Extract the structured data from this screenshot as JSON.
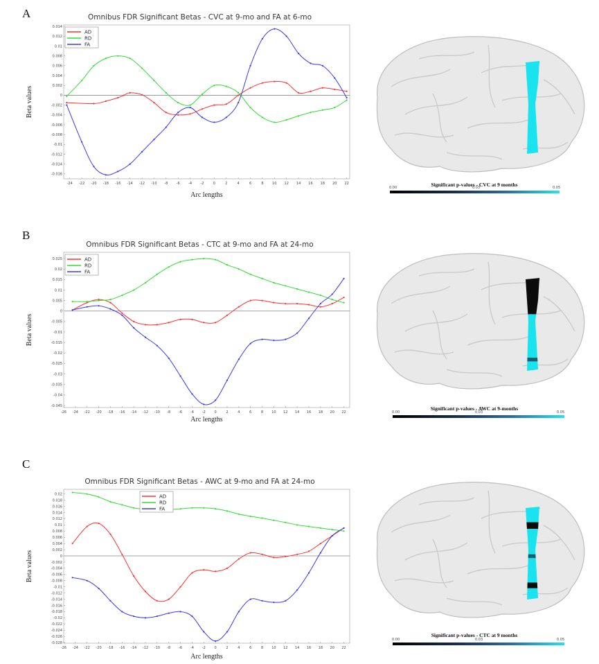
{
  "panels": [
    {
      "letter": "A",
      "colorbar_title": "Significant p-values - CVC at 9 months",
      "colorbar_ticks": [
        "0.00",
        "0.03",
        "0.05"
      ],
      "brain_marks": [
        {
          "from": 0.0,
          "to": 1.0,
          "color": "#19e3ee"
        }
      ]
    },
    {
      "letter": "B",
      "colorbar_title": "Significant p-values - AWC at 9-months",
      "colorbar_ticks": [
        "0.00",
        "0.03",
        "0.05"
      ],
      "brain_marks": [
        {
          "from": 0.0,
          "to": 0.4,
          "color": "#0b0b0b"
        },
        {
          "from": 0.4,
          "to": 1.0,
          "color": "#19e3ee"
        },
        {
          "from": 0.86,
          "to": 0.9,
          "color": "#155f73"
        }
      ]
    },
    {
      "letter": "C",
      "colorbar_title": "Significant p-values - CTC at 9 months",
      "colorbar_ticks": [
        "0.00",
        "0.03",
        "0.05"
      ],
      "brain_marks": [
        {
          "from": 0.0,
          "to": 1.0,
          "color": "#19e3ee"
        },
        {
          "from": 0.18,
          "to": 0.25,
          "color": "#0b0b0b"
        },
        {
          "from": 0.52,
          "to": 0.56,
          "color": "#155f73"
        },
        {
          "from": 0.82,
          "to": 0.88,
          "color": "#0b0b0b"
        }
      ]
    }
  ],
  "chart_data": [
    {
      "type": "line",
      "title": "Omnibus FDR Significant Betas - CVC at 9-mo and FA at 6-mo",
      "xlabel": "Arc lengths",
      "ylabel": "Beta values",
      "xlim": [
        -25,
        22.5
      ],
      "ylim": [
        -0.017,
        0.0143
      ],
      "xticks": [
        -24,
        -22,
        -20,
        -18,
        -16,
        -14,
        -12,
        -10,
        -8,
        -6,
        -4,
        -2,
        0,
        2,
        4,
        6,
        8,
        10,
        12,
        14,
        16,
        18,
        20,
        22
      ],
      "yticks": [
        {
          "v": 0.014,
          "label": "0.014"
        },
        {
          "v": 0.012,
          "label": "0.012"
        },
        {
          "v": 0.01,
          "label": "0.01"
        },
        {
          "v": 0.008,
          "label": "0.008"
        },
        {
          "v": 0.006,
          "label": "0.006"
        },
        {
          "v": 0.004,
          "label": "0.004"
        },
        {
          "v": 0.002,
          "label": "0.002"
        },
        {
          "v": 0,
          "label": "0"
        },
        {
          "v": -0.002,
          "label": "-0.002"
        },
        {
          "v": -0.004,
          "label": "-0.004"
        },
        {
          "v": -0.006,
          "label": "-0.006"
        },
        {
          "v": -0.008,
          "label": "-0.008"
        },
        {
          "v": -0.01,
          "label": "-0.01"
        },
        {
          "v": -0.012,
          "label": "-0.012"
        },
        {
          "v": -0.014,
          "label": "-0.014"
        },
        {
          "v": -0.016,
          "label": "-0.016"
        }
      ],
      "legend": "top-left",
      "series": [
        {
          "name": "AD",
          "color": "#ff3030",
          "x": [
            -24.5,
            -20,
            -18,
            -16,
            -15,
            -14,
            -12,
            -10,
            -8,
            -6,
            -4,
            -2,
            0,
            2,
            4,
            6,
            8,
            10,
            12,
            14,
            16,
            18,
            20,
            22
          ],
          "y": [
            -0.0015,
            -0.0017,
            -0.0012,
            -0.0005,
            0.0,
            0.0005,
            0.0001,
            -0.0015,
            -0.0035,
            -0.004,
            -0.0038,
            -0.0028,
            -0.002,
            -0.0018,
            0.0,
            0.0015,
            0.0025,
            0.0028,
            0.0025,
            0.0005,
            0.0008,
            0.0015,
            0.0012,
            0.0008
          ]
        },
        {
          "name": "RD",
          "color": "#33dd33",
          "x": [
            -24.5,
            -22,
            -20,
            -18,
            -16,
            -14,
            -12,
            -10,
            -8,
            -6,
            -4,
            -2,
            0,
            2,
            4,
            6,
            8,
            10,
            12,
            14,
            16,
            18,
            20,
            22
          ],
          "y": [
            -0.0002,
            0.003,
            0.006,
            0.0075,
            0.008,
            0.0075,
            0.0055,
            0.003,
            0.0005,
            -0.0015,
            -0.002,
            0.0002,
            0.002,
            0.0018,
            0.0005,
            -0.0025,
            -0.0045,
            -0.0055,
            -0.005,
            -0.0042,
            -0.0035,
            -0.003,
            -0.0025,
            -0.001
          ]
        },
        {
          "name": "FA",
          "color": "#3838ee",
          "x": [
            -24.5,
            -22,
            -20,
            -18,
            -16,
            -14,
            -12,
            -10,
            -8,
            -6,
            -4,
            -2,
            0,
            2,
            4,
            6,
            8,
            10,
            12,
            14,
            16,
            18,
            20,
            22
          ],
          "y": [
            -0.002,
            -0.0095,
            -0.0145,
            -0.0162,
            -0.0155,
            -0.014,
            -0.0115,
            -0.009,
            -0.0065,
            -0.0035,
            -0.0025,
            -0.0045,
            -0.0055,
            -0.0045,
            -0.0015,
            0.006,
            0.0115,
            0.0135,
            0.012,
            0.0085,
            0.0065,
            0.006,
            0.0035,
            -0.0005
          ]
        }
      ]
    },
    {
      "type": "line",
      "title": "Omnibus FDR Significant Betas - CTC at 9-mo and FA at 24-mo",
      "xlabel": "Arc lengths",
      "ylabel": "Beta values",
      "xlim": [
        -26,
        23
      ],
      "ylim": [
        -0.046,
        0.028
      ],
      "xticks": [
        -26,
        -24,
        -22,
        -20,
        -18,
        -16,
        -14,
        -12,
        -10,
        -8,
        -6,
        -4,
        -2,
        0,
        2,
        4,
        6,
        8,
        10,
        12,
        14,
        16,
        18,
        20,
        22
      ],
      "yticks": [
        {
          "v": 0.025,
          "label": "0.025"
        },
        {
          "v": 0.02,
          "label": "0.02"
        },
        {
          "v": 0.015,
          "label": "0.015"
        },
        {
          "v": 0.01,
          "label": "0.01"
        },
        {
          "v": 0.005,
          "label": "0.005"
        },
        {
          "v": 0,
          "label": "0"
        },
        {
          "v": -0.005,
          "label": "-0.005"
        },
        {
          "v": -0.01,
          "label": "-0.01"
        },
        {
          "v": -0.015,
          "label": "-0.015"
        },
        {
          "v": -0.02,
          "label": "-0.02"
        },
        {
          "v": -0.025,
          "label": "-0.025"
        },
        {
          "v": -0.03,
          "label": "-0.03"
        },
        {
          "v": -0.035,
          "label": "-0.035"
        },
        {
          "v": -0.04,
          "label": "-0.04"
        },
        {
          "v": -0.045,
          "label": "-0.045"
        }
      ],
      "legend": "top-left",
      "series": [
        {
          "name": "AD",
          "color": "#ff3030",
          "x": [
            -24.5,
            -22,
            -20,
            -18,
            -16,
            -14,
            -12,
            -10,
            -8,
            -6,
            -4,
            -2,
            0,
            2,
            4,
            6,
            8,
            10,
            12,
            14,
            16,
            18,
            20,
            22
          ],
          "y": [
            0.0005,
            0.004,
            0.0055,
            0.004,
            -0.001,
            -0.005,
            -0.0065,
            -0.0065,
            -0.0055,
            -0.004,
            -0.004,
            -0.0055,
            -0.0055,
            -0.002,
            0.002,
            0.005,
            0.005,
            0.004,
            0.0035,
            0.0035,
            0.003,
            0.002,
            0.0035,
            0.0065
          ]
        },
        {
          "name": "RD",
          "color": "#33dd33",
          "x": [
            -24.5,
            -22,
            -20,
            -18,
            -16,
            -14,
            -12,
            -10,
            -8,
            -6,
            -4,
            -2,
            0,
            2,
            4,
            6,
            8,
            10,
            12,
            14,
            16,
            18,
            20,
            22
          ],
          "y": [
            0.0045,
            0.0045,
            0.005,
            0.0055,
            0.0075,
            0.01,
            0.0135,
            0.0175,
            0.021,
            0.0235,
            0.0245,
            0.025,
            0.0245,
            0.022,
            0.02,
            0.0175,
            0.0155,
            0.0135,
            0.012,
            0.0105,
            0.009,
            0.0075,
            0.0055,
            0.004
          ]
        },
        {
          "name": "FA",
          "color": "#3838ee",
          "x": [
            -24.5,
            -22,
            -20,
            -18,
            -16,
            -14,
            -12,
            -10,
            -8,
            -6,
            -4,
            -2,
            0,
            2,
            4,
            6,
            8,
            10,
            12,
            14,
            16,
            18,
            20,
            22
          ],
          "y": [
            0.0005,
            0.002,
            0.0025,
            0.001,
            -0.002,
            -0.008,
            -0.0125,
            -0.0165,
            -0.0225,
            -0.031,
            -0.0395,
            -0.0445,
            -0.0425,
            -0.033,
            -0.023,
            -0.0155,
            -0.0135,
            -0.014,
            -0.0135,
            -0.0105,
            -0.0035,
            0.0035,
            0.008,
            0.0155
          ]
        }
      ]
    },
    {
      "type": "line",
      "title": "Omnibus FDR Significant Betas - AWC at 9-mo and FA at 24-mo",
      "xlabel": "Arc lengths",
      "ylabel": "Beta values",
      "xlim": [
        -26,
        23
      ],
      "ylim": [
        -0.0282,
        0.0215
      ],
      "xticks": [
        -26,
        -24,
        -22,
        -20,
        -18,
        -16,
        -14,
        -12,
        -10,
        -8,
        -6,
        -4,
        -2,
        0,
        2,
        4,
        6,
        8,
        10,
        12,
        14,
        16,
        18,
        20,
        22
      ],
      "yticks": [
        {
          "v": 0.02,
          "label": "0.02"
        },
        {
          "v": 0.018,
          "label": "0.018"
        },
        {
          "v": 0.016,
          "label": "0.016"
        },
        {
          "v": 0.014,
          "label": "0.014"
        },
        {
          "v": 0.012,
          "label": "0.012"
        },
        {
          "v": 0.01,
          "label": "0.01"
        },
        {
          "v": 0.008,
          "label": "0.008"
        },
        {
          "v": 0.006,
          "label": "0.006"
        },
        {
          "v": 0.004,
          "label": "0.004"
        },
        {
          "v": 0.002,
          "label": "0.002"
        },
        {
          "v": 0,
          "label": "0"
        },
        {
          "v": -0.002,
          "label": "-0.002"
        },
        {
          "v": -0.004,
          "label": "-0.004"
        },
        {
          "v": -0.006,
          "label": "-0.006"
        },
        {
          "v": -0.008,
          "label": "-0.008"
        },
        {
          "v": -0.01,
          "label": "-0.01"
        },
        {
          "v": -0.012,
          "label": "-0.012"
        },
        {
          "v": -0.014,
          "label": "-0.014"
        },
        {
          "v": -0.016,
          "label": "-0.016"
        },
        {
          "v": -0.018,
          "label": "-0.018"
        },
        {
          "v": -0.02,
          "label": "-0.02"
        },
        {
          "v": -0.022,
          "label": "-0.022"
        },
        {
          "v": -0.024,
          "label": "-0.024"
        },
        {
          "v": -0.026,
          "label": "-0.026"
        },
        {
          "v": -0.028,
          "label": "-0.028"
        }
      ],
      "legend": "top-right",
      "series": [
        {
          "name": "AD",
          "color": "#ff3030",
          "x": [
            -24.5,
            -22,
            -20,
            -18,
            -16,
            -14,
            -12,
            -10,
            -8,
            -6,
            -4,
            -2,
            0,
            2,
            4,
            6,
            8,
            10,
            12,
            14,
            16,
            18,
            20,
            22
          ],
          "y": [
            0.004,
            0.0095,
            0.0105,
            0.007,
            0.0005,
            -0.0065,
            -0.0115,
            -0.0145,
            -0.014,
            -0.01,
            -0.0055,
            -0.0045,
            -0.005,
            -0.004,
            -0.001,
            0.001,
            0.0005,
            -0.0005,
            -0.0002,
            0.0005,
            0.0015,
            0.004,
            0.0065,
            0.009
          ]
        },
        {
          "name": "RD",
          "color": "#33dd33",
          "x": [
            -24.5,
            -22,
            -20,
            -18,
            -16,
            -14,
            -12,
            -10,
            -8,
            -6,
            -4,
            -2,
            0,
            2,
            4,
            6,
            8,
            10,
            12,
            14,
            16,
            18,
            20,
            22
          ],
          "y": [
            0.0205,
            0.02,
            0.019,
            0.0175,
            0.0165,
            0.0155,
            0.015,
            0.015,
            0.015,
            0.0152,
            0.0155,
            0.0155,
            0.0152,
            0.0145,
            0.0135,
            0.0128,
            0.0122,
            0.0115,
            0.0108,
            0.01,
            0.0095,
            0.009,
            0.0085,
            0.008
          ]
        },
        {
          "name": "FA",
          "color": "#3838ee",
          "x": [
            -24.5,
            -22,
            -20,
            -18,
            -16,
            -14,
            -12,
            -10,
            -8,
            -6,
            -4,
            -2,
            0,
            2,
            4,
            6,
            8,
            10,
            12,
            14,
            16,
            18,
            20,
            22
          ],
          "y": [
            -0.007,
            -0.008,
            -0.0105,
            -0.0145,
            -0.018,
            -0.0195,
            -0.02,
            -0.0195,
            -0.0185,
            -0.018,
            -0.0195,
            -0.0245,
            -0.0275,
            -0.0245,
            -0.018,
            -0.014,
            -0.0145,
            -0.015,
            -0.0145,
            -0.011,
            -0.0055,
            0.001,
            0.0065,
            0.009
          ]
        }
      ]
    }
  ]
}
